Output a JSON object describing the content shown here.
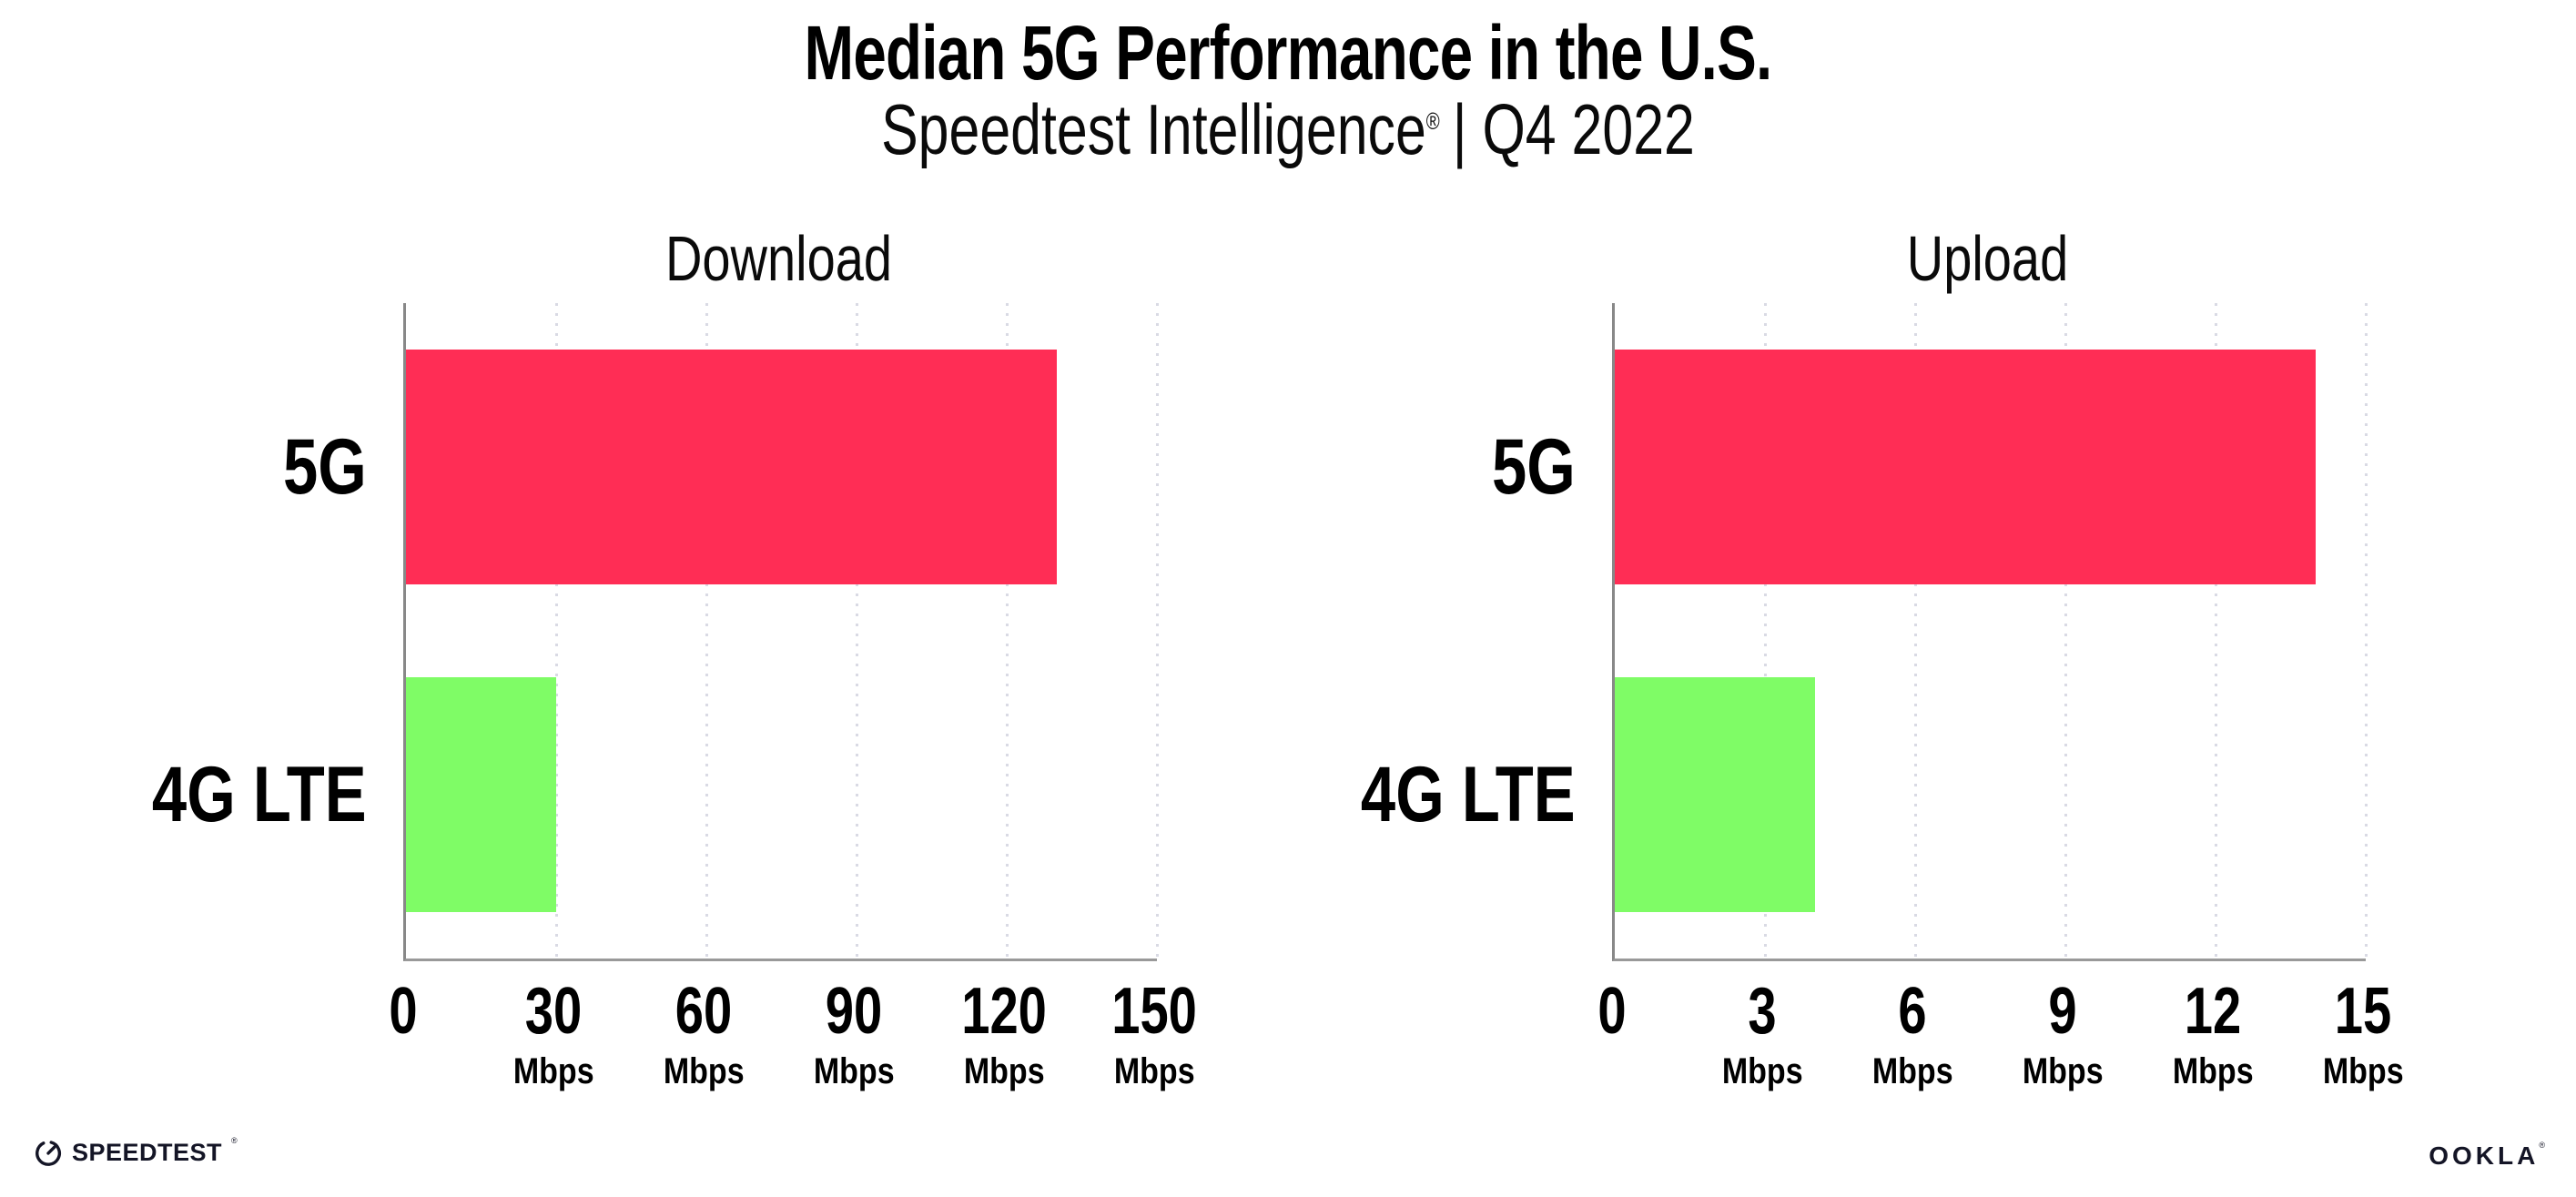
{
  "title": "Median 5G Performance in the U.S.",
  "subtitle": {
    "product": "Speedtest Intelligence",
    "registered_mark": "®",
    "suffix": "| Q4 2022"
  },
  "colors": {
    "bar_5g": "#FF2D55",
    "bar_4g_lte": "#7FFC66",
    "axis": "#8c8c8c",
    "grid_dots": "#d9dae4",
    "text": "#000000"
  },
  "chart_data": [
    {
      "type": "bar",
      "orientation": "horizontal",
      "title": "Download",
      "categories": [
        "5G",
        "4G LTE"
      ],
      "values": [
        130,
        30
      ],
      "unit": "Mbps",
      "bar_colors": [
        "#FF2D55",
        "#7FFC66"
      ],
      "x_ticks": [
        0,
        30,
        60,
        90,
        120,
        150
      ],
      "xlim": [
        0,
        150
      ],
      "grid": "dotted-vertical",
      "legend": "none"
    },
    {
      "type": "bar",
      "orientation": "horizontal",
      "title": "Upload",
      "categories": [
        "5G",
        "4G LTE"
      ],
      "values": [
        14,
        4
      ],
      "unit": "Mbps",
      "bar_colors": [
        "#FF2D55",
        "#7FFC66"
      ],
      "x_ticks": [
        0,
        3,
        6,
        9,
        12,
        15
      ],
      "xlim": [
        0,
        15
      ],
      "grid": "dotted-vertical",
      "legend": "none"
    }
  ],
  "footer": {
    "speedtest": "SPEEDTEST",
    "speedtest_mark": "®",
    "ookla": "OOKLA",
    "ookla_mark": "®"
  }
}
